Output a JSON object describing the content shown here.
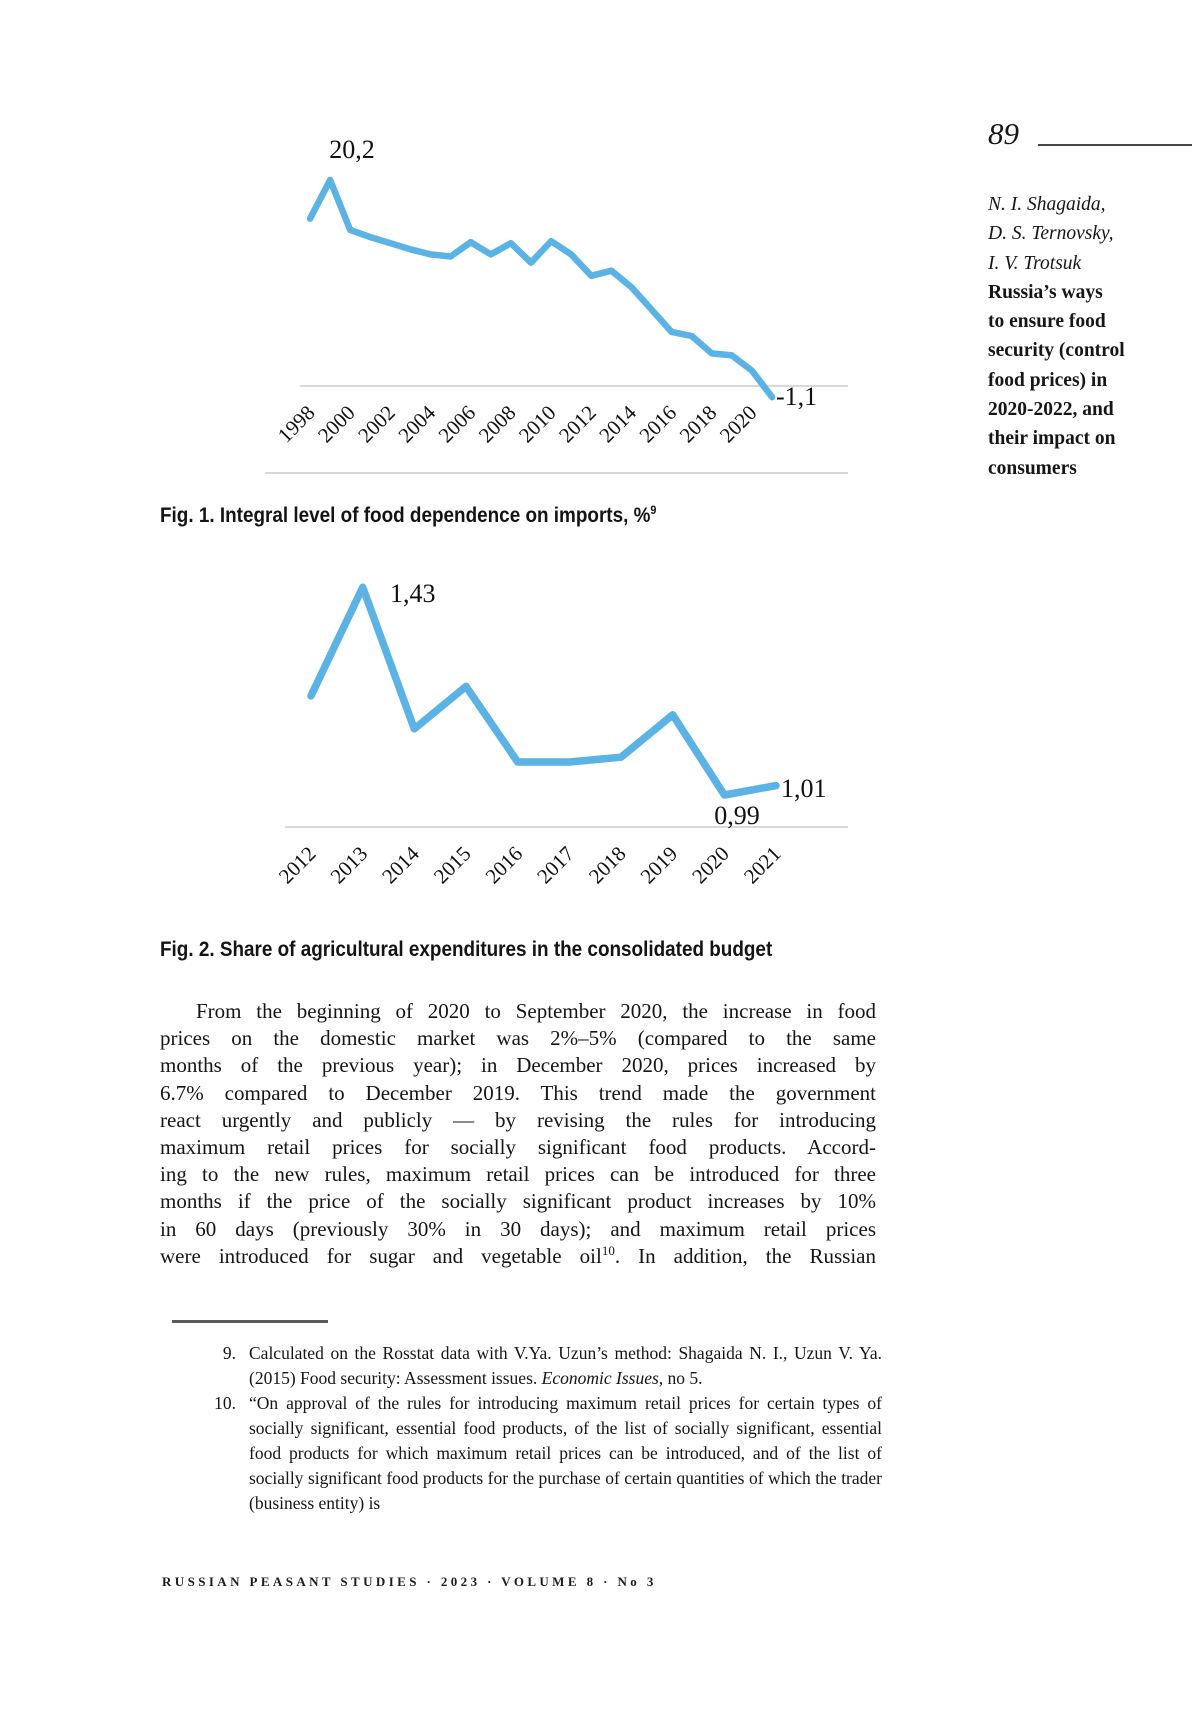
{
  "page": {
    "number": "89",
    "footer": "RUSSIAN PEASANT STUDIES · 2023 · VOLUME 8 · No 3"
  },
  "sidebar": {
    "authors": [
      "N. I. Shagaida,",
      "D. S. Ternovsky,",
      "I. V. Trotsuk"
    ],
    "title_lines": [
      "Russia’s ways",
      "to ensure food",
      "security (control",
      "food prices) in",
      "2020-2022, and",
      "their impact on",
      "consumers"
    ]
  },
  "figures": {
    "fig1": {
      "caption": "Fig. 1. Integral level of food dependence on imports, %",
      "caption_sup": "9"
    },
    "fig2": {
      "caption": "Fig. 2. Share of agricultural expenditures in the consolidated budget"
    }
  },
  "body": {
    "lines": [
      "From the beginning of 2020 to September 2020, the increase in food",
      "prices on the domestic market was 2%–5% (compared to the same",
      "months of the previous year); in December 2020, prices increased by",
      "6.7% compared to December 2019. This trend made the government",
      "react urgently and publicly — by revising the rules for introducing",
      "maximum retail prices for socially significant food products. Accord-",
      "ing to the new rules, maximum retail prices can be introduced for three",
      "months if the price of the socially significant product increases by 10%",
      "in 60 days (previously 30% in 30 days); and maximum retail prices",
      {
        "pre": "were introduced for sugar and vegetable oil",
        "sup": "10",
        "post": ". In addition, the Russian"
      }
    ]
  },
  "footnotes": [
    {
      "num": "9.",
      "text_pre": "Calculated on the Rosstat data with V.Ya. Uzun’s method: Shagaida N. I., Uzun V. Ya. (2015) Food security: Assessment issues. ",
      "text_italic": "Economic Issues",
      "text_post": ", no 5."
    },
    {
      "num": "10.",
      "text": "“On approval of the rules for introducing maximum retail prices for certain types of socially significant, essential food products, of the list of socially significant, essential food products for which maximum retail prices can be introduced, and of the list of socially significant food products for the purchase of certain quantities of which the trader (business entity) is"
    }
  ],
  "colors": {
    "line": "#5ab3e4",
    "grid": "#d9d9d9",
    "text": "#111111"
  },
  "chart_data": [
    {
      "id": "fig1",
      "type": "line",
      "title": "Integral level of food dependence on imports, %",
      "x": [
        1998,
        1999,
        2000,
        2001,
        2002,
        2003,
        2004,
        2005,
        2006,
        2007,
        2008,
        2009,
        2010,
        2011,
        2012,
        2013,
        2014,
        2015,
        2016,
        2017,
        2018,
        2019,
        2020,
        2021
      ],
      "values": [
        16.4,
        20.2,
        15.3,
        14.6,
        14.0,
        13.4,
        12.9,
        12.7,
        14.1,
        12.9,
        14.0,
        12.1,
        14.2,
        12.9,
        10.8,
        11.3,
        9.7,
        7.5,
        5.3,
        4.9,
        3.2,
        3.0,
        1.5,
        -1.1
      ],
      "tick_labels": [
        "1998",
        "2000",
        "2002",
        "2004",
        "2006",
        "2008",
        "2010",
        "2012",
        "2014",
        "2016",
        "2018",
        "2020"
      ],
      "annotations": [
        {
          "x": 1999,
          "label": "20,2"
        },
        {
          "x": 2021,
          "label": "-1,1"
        }
      ],
      "ylim": [
        -2,
        21
      ],
      "grid": "zero gridline + bottom border, no y axis",
      "legend": "none"
    },
    {
      "id": "fig2",
      "type": "line",
      "title": "Share of agricultural expenditures in the consolidated budget",
      "x": [
        2012,
        2013,
        2014,
        2015,
        2016,
        2017,
        2018,
        2019,
        2020,
        2021
      ],
      "values": [
        1.2,
        1.43,
        1.13,
        1.22,
        1.06,
        1.06,
        1.07,
        1.16,
        0.99,
        1.01
      ],
      "tick_labels": [
        "2012",
        "2013",
        "2014",
        "2015",
        "2016",
        "2017",
        "2018",
        "2019",
        "2020",
        "2021"
      ],
      "annotations": [
        {
          "x": 2013,
          "label": "1,43"
        },
        {
          "x": 2020,
          "label": "0,99"
        },
        {
          "x": 2021,
          "label": "1,01"
        }
      ],
      "ylim": [
        0.9,
        1.5
      ],
      "grid": "bottom axis line only, no y axis",
      "legend": "none"
    }
  ]
}
